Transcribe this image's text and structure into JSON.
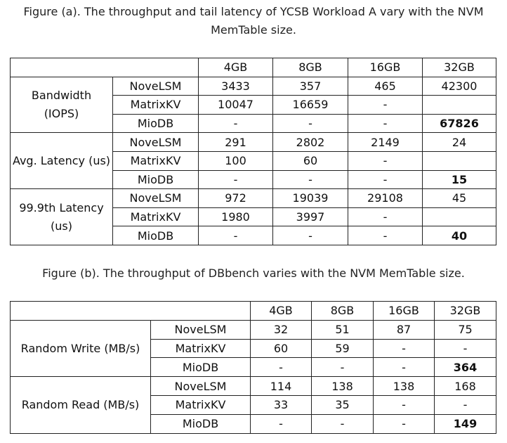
{
  "figure_a": {
    "caption_line1": "Figure (a). The throughput and tail latency of YCSB Workload A vary with the NVM",
    "caption_line2": "MemTable size.",
    "columns": [
      "4GB",
      "8GB",
      "16GB",
      "32GB"
    ],
    "groups": [
      {
        "label_line1": "Bandwidth",
        "label_line2": "(IOPS)",
        "rows": [
          {
            "system": "NoveLSM",
            "values": [
              "3433",
              "357",
              "465",
              "42300"
            ]
          },
          {
            "system": "MatrixKV",
            "values": [
              "10047",
              "16659",
              "-",
              ""
            ]
          },
          {
            "system": "MioDB",
            "values": [
              "-",
              "-",
              "-",
              "67826"
            ]
          }
        ]
      },
      {
        "label_line1": "Avg. Latency (us)",
        "label_line2": "",
        "rows": [
          {
            "system": "NoveLSM",
            "values": [
              "291",
              "2802",
              "2149",
              "24"
            ]
          },
          {
            "system": "MatrixKV",
            "values": [
              "100",
              "60",
              "-",
              ""
            ]
          },
          {
            "system": "MioDB",
            "values": [
              "-",
              "-",
              "-",
              "15"
            ]
          }
        ]
      },
      {
        "label_line1": "99.9th Latency",
        "label_line2": "(us)",
        "rows": [
          {
            "system": "NoveLSM",
            "values": [
              "972",
              "19039",
              "29108",
              "45"
            ]
          },
          {
            "system": "MatrixKV",
            "values": [
              "1980",
              "3997",
              "-",
              ""
            ]
          },
          {
            "system": "MioDB",
            "values": [
              "-",
              "-",
              "-",
              "40"
            ]
          }
        ]
      }
    ]
  },
  "figure_b": {
    "caption": "Figure (b). The throughput of DBbench varies with the NVM MemTable size.",
    "columns": [
      "4GB",
      "8GB",
      "16GB",
      "32GB"
    ],
    "groups": [
      {
        "label": "Random Write (MB/s)",
        "rows": [
          {
            "system": "NoveLSM",
            "values": [
              "32",
              "51",
              "87",
              "75"
            ]
          },
          {
            "system": "MatrixKV",
            "values": [
              "60",
              "59",
              "-",
              "-"
            ]
          },
          {
            "system": "MioDB",
            "values": [
              "-",
              "-",
              "-",
              "364"
            ]
          }
        ]
      },
      {
        "label": "Random Read (MB/s)",
        "rows": [
          {
            "system": "NoveLSM",
            "values": [
              "114",
              "138",
              "138",
              "168"
            ]
          },
          {
            "system": "MatrixKV",
            "values": [
              "33",
              "35",
              "-",
              "-"
            ]
          },
          {
            "system": "MioDB",
            "values": [
              "-",
              "-",
              "-",
              "149"
            ]
          }
        ]
      }
    ]
  }
}
